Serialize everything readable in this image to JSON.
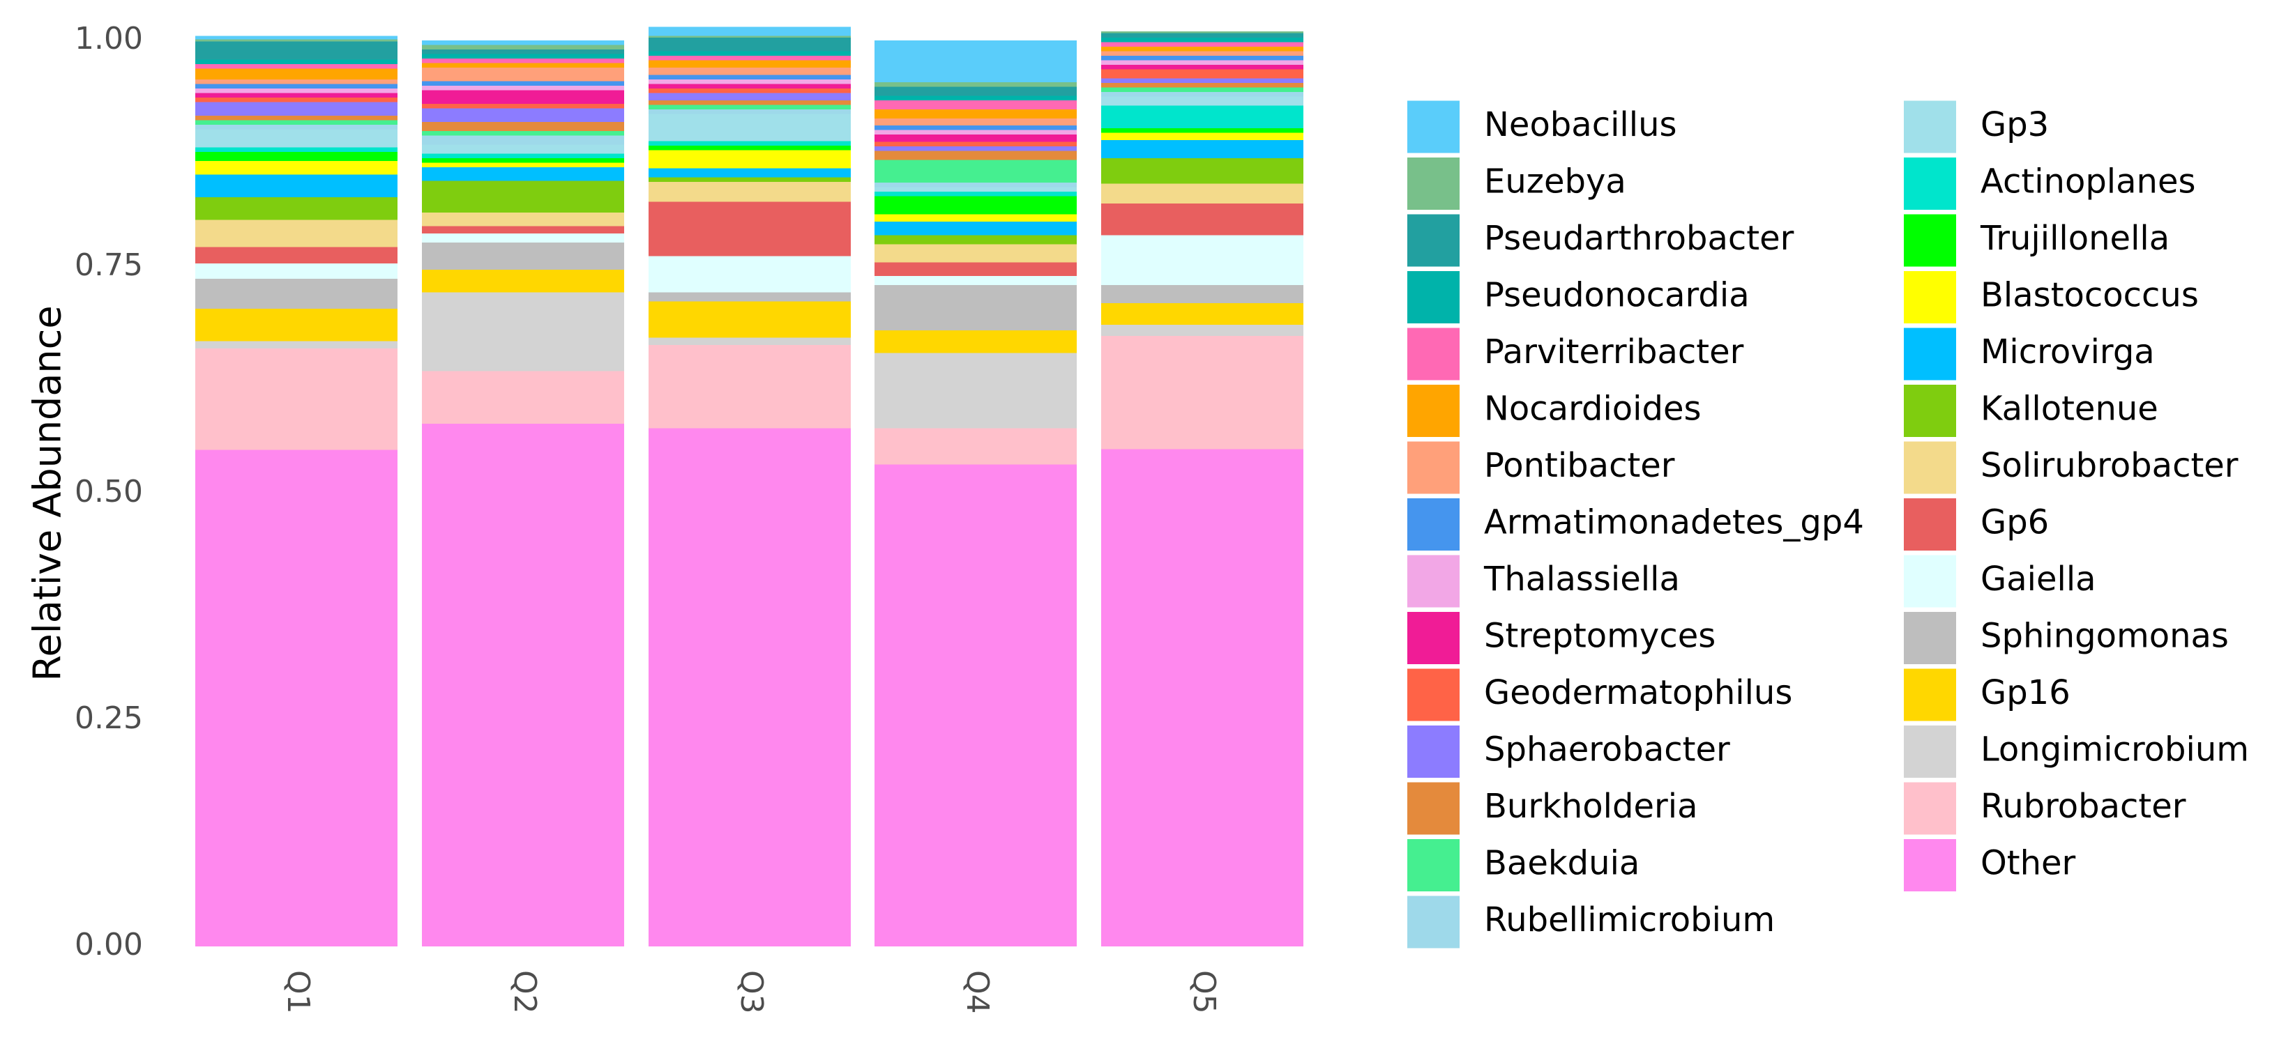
{
  "chart_data": {
    "type": "bar",
    "stacked": true,
    "title": "",
    "xlabel": "",
    "ylabel": "Relative Abundance",
    "ylim": [
      0,
      1
    ],
    "y_ticks": [
      "0.00",
      "0.25",
      "0.50",
      "0.75",
      "1.00"
    ],
    "categories": [
      "Q1",
      "Q2",
      "Q3",
      "Q4",
      "Q5"
    ],
    "legend_position": "right",
    "legend_title": "",
    "series": [
      {
        "name": "Other",
        "color": "#FF88EE",
        "values": [
          0.548,
          0.577,
          0.572,
          0.532,
          0.549
        ]
      },
      {
        "name": "Rubrobacter",
        "color": "#FFC0CB",
        "values": [
          0.112,
          0.058,
          0.092,
          0.04,
          0.125
        ]
      },
      {
        "name": "Longimicrobium",
        "color": "#D3D3D3",
        "values": [
          0.008,
          0.087,
          0.008,
          0.083,
          0.012
        ]
      },
      {
        "name": "Gp16",
        "color": "#FFD700",
        "values": [
          0.036,
          0.025,
          0.04,
          0.025,
          0.024
        ]
      },
      {
        "name": "Sphingomonas",
        "color": "#BEBEBE",
        "values": [
          0.033,
          0.03,
          0.01,
          0.05,
          0.02
        ]
      },
      {
        "name": "Gaiella",
        "color": "#E0FFFF",
        "values": [
          0.017,
          0.01,
          0.04,
          0.01,
          0.055
        ]
      },
      {
        "name": "Gp6",
        "color": "#E85F5F",
        "values": [
          0.018,
          0.008,
          0.06,
          0.015,
          0.035
        ]
      },
      {
        "name": "Solirubrobacter",
        "color": "#F3DA8B",
        "values": [
          0.03,
          0.015,
          0.022,
          0.02,
          0.022
        ]
      },
      {
        "name": "Kallotenue",
        "color": "#7FCD0F",
        "values": [
          0.025,
          0.035,
          0.005,
          0.01,
          0.028
        ]
      },
      {
        "name": "Microvirga",
        "color": "#00BFFF",
        "values": [
          0.025,
          0.015,
          0.01,
          0.015,
          0.02
        ]
      },
      {
        "name": "Blastococcus",
        "color": "#FFFF00",
        "values": [
          0.015,
          0.005,
          0.02,
          0.008,
          0.008
        ]
      },
      {
        "name": "Trujillonella",
        "color": "#00FF00",
        "values": [
          0.01,
          0.005,
          0.005,
          0.02,
          0.005
        ]
      },
      {
        "name": "Actinoplanes",
        "color": "#00E5CC",
        "values": [
          0.005,
          0.005,
          0.005,
          0.005,
          0.025
        ]
      },
      {
        "name": "Gp3",
        "color": "#A0E0EA",
        "values": [
          0.02,
          0.01,
          0.03,
          0.005,
          0.01
        ]
      },
      {
        "name": "Rubellimicrobium",
        "color": "#9ED9EA",
        "values": [
          0.005,
          0.01,
          0.005,
          0.005,
          0.005
        ]
      },
      {
        "name": "Baekduia",
        "color": "#45EF90",
        "values": [
          0.005,
          0.005,
          0.005,
          0.025,
          0.005
        ]
      },
      {
        "name": "Burkholderia",
        "color": "#E48A3C",
        "values": [
          0.005,
          0.01,
          0.005,
          0.01,
          0.005
        ]
      },
      {
        "name": "Sphaerobacter",
        "color": "#8C7CFF",
        "values": [
          0.015,
          0.015,
          0.008,
          0.005,
          0.005
        ]
      },
      {
        "name": "Geodermatophilus",
        "color": "#FF6347",
        "values": [
          0.005,
          0.005,
          0.005,
          0.005,
          0.01
        ]
      },
      {
        "name": "Streptomyces",
        "color": "#F01C96",
        "values": [
          0.005,
          0.015,
          0.005,
          0.008,
          0.005
        ]
      },
      {
        "name": "Thalassiella",
        "color": "#F2A7E6",
        "values": [
          0.005,
          0.005,
          0.005,
          0.005,
          0.005
        ]
      },
      {
        "name": "Armatimonadetes_gp4",
        "color": "#4595EE",
        "values": [
          0.005,
          0.005,
          0.005,
          0.005,
          0.005
        ]
      },
      {
        "name": "Pontibacter",
        "color": "#FFA07A",
        "values": [
          0.005,
          0.015,
          0.008,
          0.008,
          0.005
        ]
      },
      {
        "name": "Nocardioides",
        "color": "#FFA500",
        "values": [
          0.012,
          0.005,
          0.008,
          0.01,
          0.005
        ]
      },
      {
        "name": "Parviterribacter",
        "color": "#FF69B4",
        "values": [
          0.005,
          0.005,
          0.005,
          0.01,
          0.005
        ]
      },
      {
        "name": "Pseudonocardia",
        "color": "#00B3AA",
        "values": [
          0.005,
          0.005,
          0.005,
          0.005,
          0.005
        ]
      },
      {
        "name": "Pseudarthrobacter",
        "color": "#22A0A0",
        "values": [
          0.02,
          0.005,
          0.015,
          0.01,
          0.005
        ]
      },
      {
        "name": "Euzebya",
        "color": "#78C08A",
        "values": [
          0.002,
          0.005,
          0.002,
          0.005,
          0.002
        ]
      },
      {
        "name": "Neobacillus",
        "color": "#5ACDFA",
        "values": [
          0.004,
          0.0,
          0.01,
          0.002,
          0.0
        ]
      }
    ],
    "legend_col1": [
      {
        "label": "Neobacillus",
        "color": "#5ACDFA"
      },
      {
        "label": "Euzebya",
        "color": "#78C08A"
      },
      {
        "label": "Pseudarthrobacter",
        "color": "#22A0A0"
      },
      {
        "label": "Pseudonocardia",
        "color": "#00B3AA"
      },
      {
        "label": "Parviterribacter",
        "color": "#FF69B4"
      },
      {
        "label": "Nocardioides",
        "color": "#FFA500"
      },
      {
        "label": "Pontibacter",
        "color": "#FFA07A"
      },
      {
        "label": "Armatimonadetes_gp4",
        "color": "#4595EE"
      },
      {
        "label": "Thalassiella",
        "color": "#F2A7E6"
      },
      {
        "label": "Streptomyces",
        "color": "#F01C96"
      },
      {
        "label": "Geodermatophilus",
        "color": "#FF6347"
      },
      {
        "label": "Sphaerobacter",
        "color": "#8C7CFF"
      },
      {
        "label": "Burkholderia",
        "color": "#E48A3C"
      },
      {
        "label": "Baekduia",
        "color": "#45EF90"
      },
      {
        "label": "Rubellimicrobium",
        "color": "#9ED9EA"
      }
    ],
    "legend_col2": [
      {
        "label": "Gp3",
        "color": "#A0E0EA"
      },
      {
        "label": "Actinoplanes",
        "color": "#00E5CC"
      },
      {
        "label": "Trujillonella",
        "color": "#00FF00"
      },
      {
        "label": "Blastococcus",
        "color": "#FFFF00"
      },
      {
        "label": "Microvirga",
        "color": "#00BFFF"
      },
      {
        "label": "Kallotenue",
        "color": "#7FCD0F"
      },
      {
        "label": "Solirubrobacter",
        "color": "#F3DA8B"
      },
      {
        "label": "Gp6",
        "color": "#E85F5F"
      },
      {
        "label": "Gaiella",
        "color": "#E0FFFF"
      },
      {
        "label": "Sphingomonas",
        "color": "#BEBEBE"
      },
      {
        "label": "Gp16",
        "color": "#FFD700"
      },
      {
        "label": "Longimicrobium",
        "color": "#D3D3D3"
      },
      {
        "label": "Rubrobacter",
        "color": "#FFC0CB"
      },
      {
        "label": "Other",
        "color": "#FF88EE"
      }
    ]
  }
}
